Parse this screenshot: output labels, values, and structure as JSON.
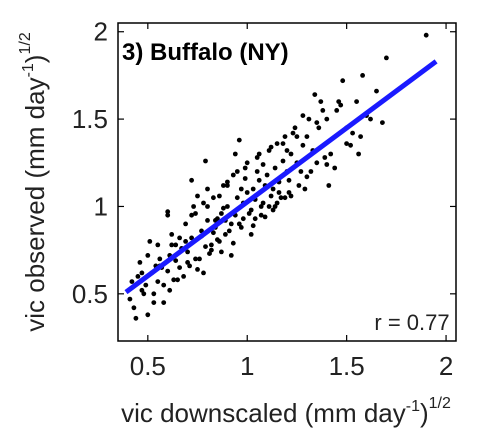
{
  "chart_data": {
    "type": "scatter",
    "title": "3) Buffalo (NY)",
    "xlabel": "vic downscaled (mm day",
    "xlabel_sup1": "-1",
    "xlabel_mid": ")",
    "xlabel_sup2": "1/2",
    "ylabel": "vic observed (mm day",
    "ylabel_sup1": "-1",
    "ylabel_mid": ")",
    "ylabel_sup2": "1/2",
    "xlim": [
      0.35,
      2.05
    ],
    "ylim": [
      0.23,
      2.05
    ],
    "xticks": [
      0.5,
      1,
      1.5,
      2
    ],
    "xtick_labels": [
      "0.5",
      "1",
      "1.5",
      "2"
    ],
    "yticks": [
      0.5,
      1,
      1.5,
      2
    ],
    "ytick_labels": [
      "0.5",
      "1",
      "1.5",
      "2"
    ],
    "annotation": "r = 0.77",
    "point_color": "#000000",
    "fit_color": "#1a1aff",
    "fit_line": {
      "x": [
        0.39,
        1.95
      ],
      "y": [
        0.51,
        1.83
      ]
    },
    "points_x": [
      0.41,
      0.43,
      0.45,
      0.47,
      0.49,
      0.5,
      0.52,
      0.53,
      0.55,
      0.56,
      0.58,
      0.6,
      0.61,
      0.63,
      0.64,
      0.66,
      0.68,
      0.7,
      0.72,
      0.74,
      0.75,
      0.77,
      0.79,
      0.8,
      0.82,
      0.84,
      0.85,
      0.87,
      0.89,
      0.9,
      0.92,
      0.94,
      0.95,
      0.97,
      0.98,
      1.0,
      1.01,
      1.03,
      1.04,
      1.06,
      1.07,
      1.09,
      1.1,
      1.12,
      1.14,
      1.16,
      1.18,
      1.2,
      1.22,
      1.25,
      1.28,
      1.3,
      1.33,
      1.36,
      1.4,
      1.45,
      1.5,
      1.55,
      1.6,
      1.65,
      0.46,
      0.5,
      0.55,
      0.58,
      0.62,
      0.65,
      0.69,
      0.72,
      0.76,
      0.78,
      0.81,
      0.83,
      0.86,
      0.88,
      0.91,
      0.93,
      0.96,
      0.99,
      1.02,
      1.05,
      1.08,
      1.11,
      1.13,
      1.15,
      1.17,
      1.19,
      1.21,
      1.24,
      1.27,
      1.31,
      1.35,
      1.38,
      1.42,
      1.47,
      1.52,
      1.57,
      1.62,
      0.44,
      0.48,
      0.51,
      0.57,
      0.6,
      0.64,
      0.67,
      0.71,
      0.74,
      0.77,
      0.8,
      0.83,
      0.85,
      0.88,
      0.9,
      0.93,
      0.95,
      0.98,
      1.0,
      1.03,
      1.06,
      1.09,
      1.12,
      1.15,
      1.18,
      1.21,
      1.25,
      1.3,
      1.35,
      1.4,
      1.46,
      1.5,
      1.58,
      1.7,
      1.9,
      0.42,
      0.47,
      0.53,
      0.56,
      0.61,
      0.66,
      0.7,
      0.73,
      0.78,
      0.82,
      0.86,
      0.89,
      0.92,
      0.97,
      1.02,
      1.07,
      1.11,
      1.16,
      1.2,
      1.26,
      1.32,
      1.37,
      1.44,
      1.48,
      1.53,
      0.54,
      0.62,
      0.69,
      0.75,
      0.8,
      0.84,
      0.9,
      0.94,
      0.99,
      1.04,
      1.08,
      1.13,
      1.19,
      1.23,
      1.29,
      1.34,
      1.39,
      0.6,
      0.72,
      0.79,
      0.87,
      0.96,
      1.05,
      1.14,
      1.22,
      1.28,
      1.41,
      1.56,
      1.68
    ],
    "points_y": [
      0.47,
      0.42,
      0.6,
      0.52,
      0.55,
      0.38,
      0.62,
      0.5,
      0.57,
      0.66,
      0.45,
      0.63,
      0.72,
      0.58,
      0.78,
      0.65,
      0.6,
      0.74,
      0.82,
      0.7,
      0.64,
      0.86,
      0.77,
      0.92,
      0.75,
      0.88,
      0.81,
      0.96,
      0.84,
      1.0,
      0.9,
      0.95,
      1.05,
      0.88,
      1.02,
      1.08,
      0.96,
      1.1,
      1.04,
      1.15,
      1.0,
      1.12,
      1.18,
      1.06,
      1.22,
      1.14,
      1.26,
      1.2,
      1.3,
      1.25,
      1.35,
      1.4,
      1.32,
      1.45,
      1.5,
      1.55,
      1.45,
      1.6,
      1.52,
      1.66,
      0.68,
      0.72,
      0.78,
      0.55,
      0.84,
      0.58,
      0.9,
      0.95,
      0.7,
      1.02,
      0.73,
      1.05,
      0.8,
      1.12,
      0.86,
      1.18,
      0.9,
      1.22,
      0.98,
      1.28,
      1.02,
      1.32,
      1.1,
      1.36,
      1.05,
      1.4,
      1.15,
      1.45,
      1.2,
      1.5,
      1.25,
      1.55,
      1.3,
      1.58,
      1.35,
      1.4,
      1.5,
      0.36,
      0.5,
      0.8,
      0.65,
      0.95,
      0.69,
      0.76,
      0.66,
      0.96,
      0.83,
      1.1,
      0.85,
      0.93,
      0.99,
      1.14,
      0.79,
      1.2,
      0.93,
      1.25,
      0.89,
      1.3,
      0.94,
      1.34,
      1.02,
      1.36,
      1.08,
      1.4,
      1.17,
      1.48,
      1.24,
      1.6,
      1.36,
      1.75,
      1.85,
      1.98,
      0.57,
      0.62,
      0.45,
      0.7,
      0.52,
      0.82,
      0.68,
      1.0,
      0.62,
      0.78,
      1.06,
      0.92,
      0.72,
      1.1,
      0.84,
      0.95,
      1.0,
      1.08,
      1.32,
      1.12,
      1.2,
      1.6,
      1.22,
      1.72,
      1.42,
      0.66,
      0.78,
      0.8,
      1.06,
      1.0,
      0.92,
      1.12,
      1.3,
      1.16,
      0.93,
      1.24,
      0.98,
      1.05,
      1.42,
      1.1,
      1.64,
      1.28,
      0.97,
      1.15,
      1.26,
      0.74,
      1.38,
      1.2,
      1.0,
      1.06,
      1.52,
      1.12,
      1.3,
      1.48
    ]
  }
}
